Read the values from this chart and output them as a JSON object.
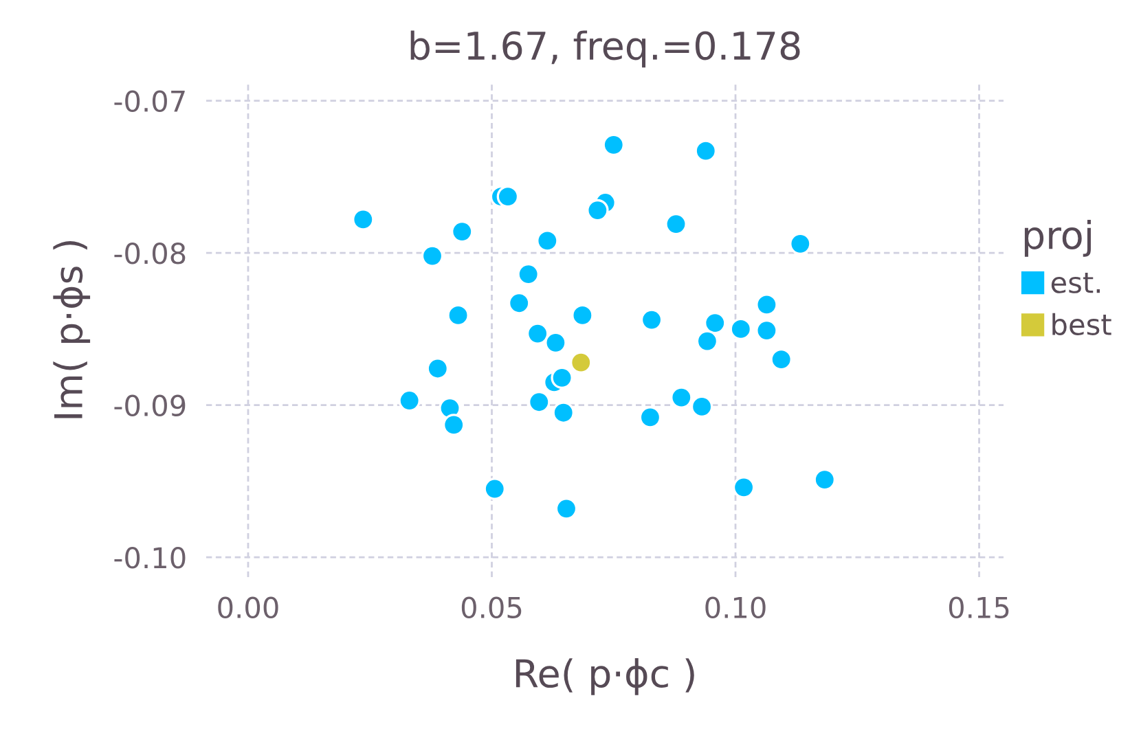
{
  "chart_data": {
    "type": "scatter",
    "title": "b=1.67, freq.=0.178",
    "xlabel": "Re( p·ϕc )",
    "ylabel": "Im( p·ϕs )",
    "legend_title": "proj",
    "legend": "right",
    "grid": true,
    "marker": "circle",
    "xlim": [
      -0.0086,
      0.155
    ],
    "ylim": [
      -0.1013,
      -0.0688
    ],
    "xticks": [
      {
        "value": 0,
        "label": "0.00"
      },
      {
        "value": 0.05,
        "label": "0.05"
      },
      {
        "value": 0.1,
        "label": "0.10"
      },
      {
        "value": 0.15,
        "label": "0.15"
      }
    ],
    "yticks": [
      {
        "value": -0.07,
        "label": "-0.07"
      },
      {
        "value": -0.08,
        "label": "-0.08"
      },
      {
        "value": -0.09,
        "label": "-0.09"
      },
      {
        "value": -0.1,
        "label": "-0.10"
      }
    ],
    "series": [
      {
        "name": "est.",
        "color": "#00bfff",
        "x": [
          0.0236,
          0.0378,
          0.0439,
          0.0519,
          0.0533,
          0.075,
          0.0939,
          0.0733,
          0.0717,
          0.0878,
          0.1133,
          0.0614,
          0.0575,
          0.0556,
          0.0431,
          0.0686,
          0.0594,
          0.0631,
          0.0828,
          0.0958,
          0.1011,
          0.1064,
          0.1064,
          0.0942,
          0.1094,
          0.0389,
          0.0628,
          0.0644,
          0.0331,
          0.0414,
          0.0422,
          0.0597,
          0.0647,
          0.0825,
          0.0889,
          0.0931,
          0.0506,
          0.0653,
          0.1017,
          0.1183
        ],
        "values": [
          -0.0778,
          -0.0802,
          -0.0786,
          -0.0763,
          -0.0763,
          -0.0729,
          -0.0733,
          -0.0767,
          -0.0772,
          -0.0781,
          -0.0794,
          -0.0792,
          -0.0814,
          -0.0833,
          -0.0841,
          -0.0841,
          -0.0853,
          -0.0859,
          -0.0844,
          -0.0846,
          -0.085,
          -0.0834,
          -0.0851,
          -0.0858,
          -0.087,
          -0.0876,
          -0.0885,
          -0.0882,
          -0.0897,
          -0.0902,
          -0.0913,
          -0.0898,
          -0.0905,
          -0.0908,
          -0.0895,
          -0.0901,
          -0.0955,
          -0.0968,
          -0.0954,
          -0.0949
        ]
      },
      {
        "name": "best",
        "color": "#d4ca3a",
        "x": [
          0.0683
        ],
        "values": [
          -0.0872
        ]
      }
    ]
  }
}
